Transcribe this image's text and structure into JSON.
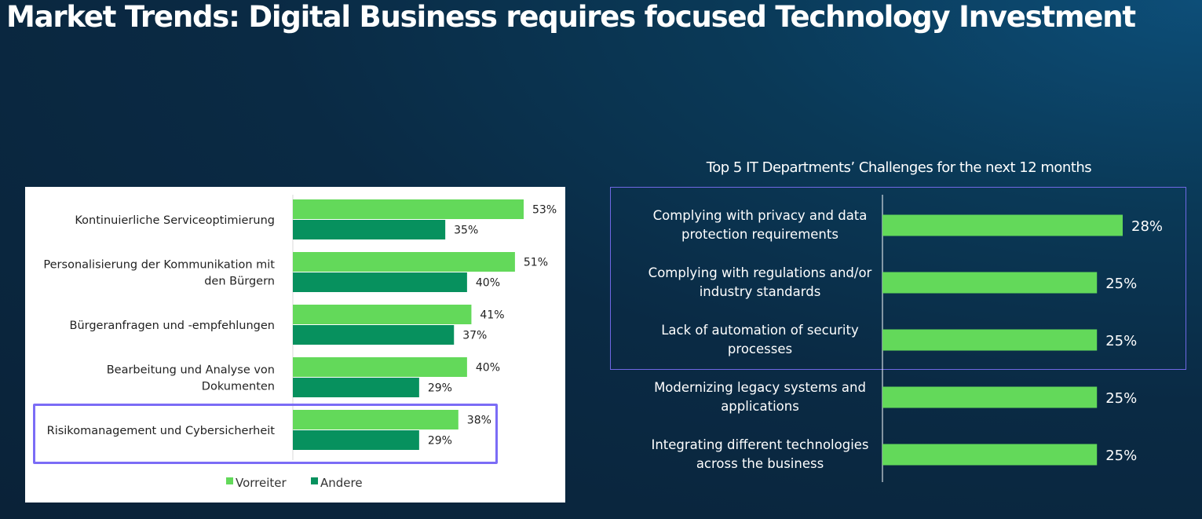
{
  "page": {
    "title": "Market Trends: Digital Business requires focused Technology Investment"
  },
  "chart_data": [
    {
      "type": "bar",
      "orientation": "horizontal",
      "categories": [
        "Kontinuierliche Serviceoptimierung",
        "Personalisierung der Kommunikation mit den Bürgern",
        "Bürgeranfragen und -empfehlungen",
        "Bearbeitung und Analyse von Dokumenten",
        "Risikomanagement und Cybersicherheit"
      ],
      "category_lines": [
        [
          "Kontinuierliche Serviceoptimierung"
        ],
        [
          "Personalisierung der Kommunikation mit",
          "den Bürgern"
        ],
        [
          "Bürgeranfragen und -empfehlungen"
        ],
        [
          "Bearbeitung und Analyse von",
          "Dokumenten"
        ],
        [
          "Risikomanagement und Cybersicherheit"
        ]
      ],
      "series": [
        {
          "name": "Vorreiter",
          "values": [
            53,
            51,
            41,
            40,
            38
          ],
          "labels": [
            "53%",
            "51%",
            "41%",
            "40%",
            "38%"
          ],
          "color": "#63d95a"
        },
        {
          "name": "Andere",
          "values": [
            35,
            40,
            37,
            29,
            29
          ],
          "labels": [
            "35%",
            "40%",
            "37%",
            "29%",
            "29%"
          ],
          "color": "#07915e"
        }
      ],
      "xlim": [
        0,
        60
      ],
      "legend": "bottom",
      "highlighted_category": "Risikomanagement und Cybersicherheit",
      "highlight_color": "#7b6cf6"
    },
    {
      "type": "bar",
      "orientation": "horizontal",
      "title": "Top 5 IT Departments’ Challenges for the next 12 months",
      "categories": [
        "Complying with privacy and data protection requirements",
        "Complying with regulations and/or industry standards",
        "Lack of automation of security processes",
        "Modernizing legacy systems and applications",
        "Integrating different technologies across the business"
      ],
      "category_lines": [
        [
          "Complying with privacy and data",
          "protection requirements"
        ],
        [
          "Complying with regulations and/or",
          "industry standards"
        ],
        [
          "Lack of automation of security",
          "processes"
        ],
        [
          "Modernizing legacy systems and",
          "applications"
        ],
        [
          "Integrating different technologies",
          "across the business"
        ]
      ],
      "values": [
        28,
        25,
        25,
        25,
        25
      ],
      "labels": [
        "28%",
        "25%",
        "25%",
        "25%",
        "25%"
      ],
      "color": "#63d95a",
      "xlim": [
        0,
        34
      ],
      "highlighted_categories": [
        "Complying with privacy and data protection requirements",
        "Complying with regulations and/or industry standards",
        "Lack of automation of security processes"
      ],
      "highlight_color": "#6f68e4"
    }
  ]
}
